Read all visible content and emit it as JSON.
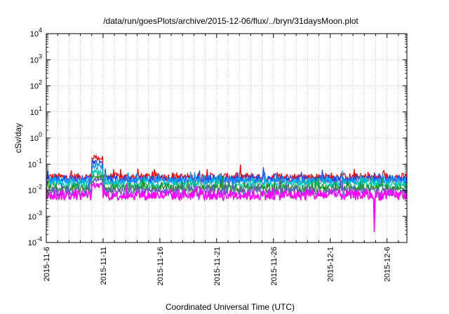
{
  "chart_data": {
    "type": "line",
    "title": "/data/run/goesPlots/archive/2015-12-06/flux/../bryn/31daysMoon.plot",
    "xlabel": "Coordinated Universal Time (UTC)",
    "ylabel": "cSv/day",
    "yscale": "log",
    "ylim": [
      0.0001,
      10000
    ],
    "xlim": [
      "2015-11-06",
      "2015-12-07 18:00"
    ],
    "grid": true,
    "y_ticks": [
      {
        "value": 0.0001,
        "base": "10",
        "exp": "-4"
      },
      {
        "value": 0.001,
        "base": "10",
        "exp": "-3"
      },
      {
        "value": 0.01,
        "base": "10",
        "exp": "-2"
      },
      {
        "value": 0.1,
        "base": "10",
        "exp": "-1"
      },
      {
        "value": 1,
        "base": "10",
        "exp": "0"
      },
      {
        "value": 10,
        "base": "10",
        "exp": "1"
      },
      {
        "value": 100,
        "base": "10",
        "exp": "2"
      },
      {
        "value": 1000,
        "base": "10",
        "exp": "3"
      },
      {
        "value": 10000,
        "base": "10",
        "exp": "4"
      }
    ],
    "x_tick_labels": [
      "2015-11-6",
      "2015-11-11",
      "2015-11-16",
      "2015-11-21",
      "2015-11-26",
      "2015-12-1",
      "2015-12-6"
    ],
    "series": [
      {
        "color": "#ff0000",
        "level": 0.032,
        "spread": 0.16,
        "burst": 0.22
      },
      {
        "color": "#0a50ff",
        "level": 0.027,
        "spread": 0.15,
        "burst": 0.15
      },
      {
        "color": "#00a0ff",
        "level": 0.022,
        "spread": 0.14,
        "burst": 0.1
      },
      {
        "color": "#00c8a0",
        "level": 0.016,
        "spread": 0.14,
        "burst": 0.06
      },
      {
        "color": "#228b22",
        "level": 0.012,
        "spread": 0.16,
        "burst": 0.04
      },
      {
        "color": "#6a5acd",
        "level": 0.009,
        "spread": 0.18,
        "burst": 0.03
      },
      {
        "color": "#ff00ff",
        "level": 0.0065,
        "spread": 0.2,
        "burst": 0.02,
        "min_date": "2015-12-05",
        "min_value": 0.00025
      }
    ]
  }
}
